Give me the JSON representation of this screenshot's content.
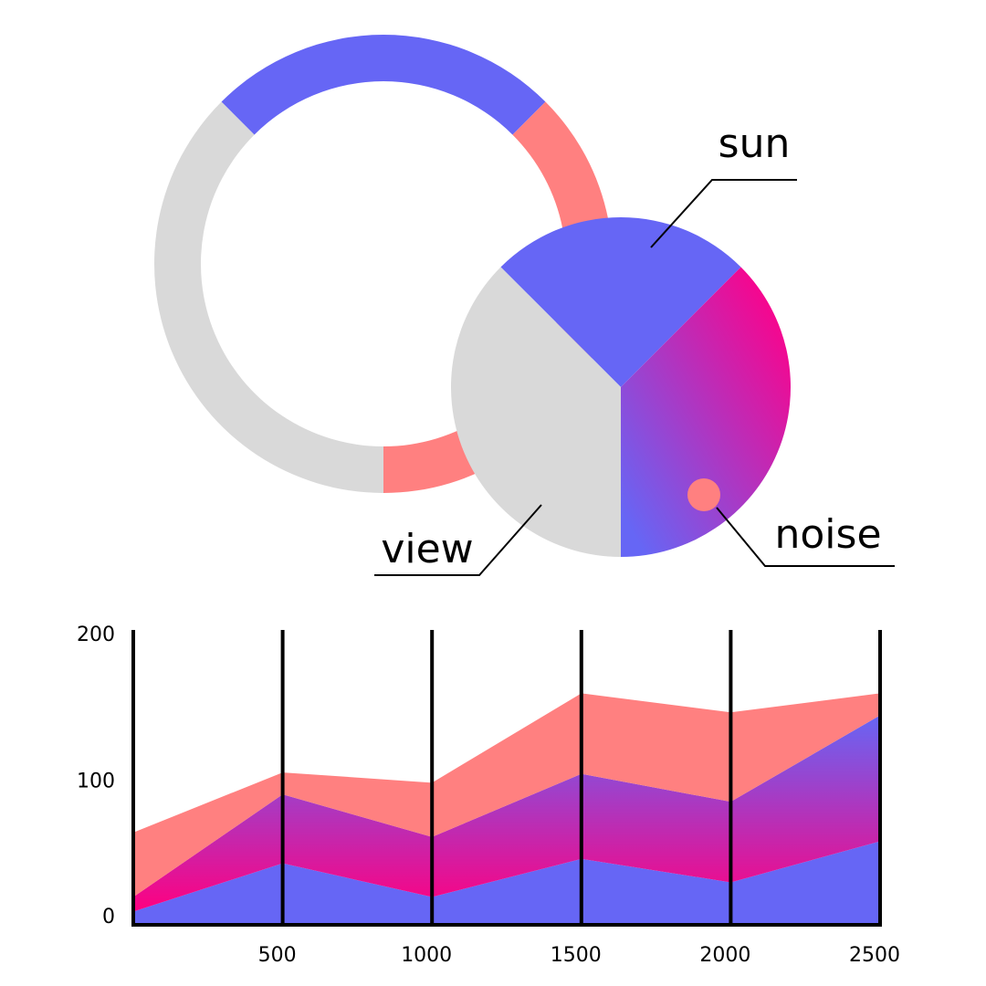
{
  "chart_data": [
    {
      "type": "donut",
      "values": [
        25,
        37.5,
        37.5
      ],
      "colors": [
        "#6666f5",
        "#ff8080",
        "#d9d9d9"
      ]
    },
    {
      "type": "pie",
      "categories": [
        "sun",
        "noise",
        "view"
      ],
      "values": [
        25,
        37.5,
        37.5
      ],
      "colors": [
        "#6666f5",
        [
          "#ff0088",
          "#6666f5"
        ],
        "#d9d9d9"
      ]
    },
    {
      "type": "area",
      "stacked": true,
      "x": [
        0,
        500,
        1000,
        1500,
        2000,
        2500
      ],
      "series": [
        {
          "color": "#6666f5",
          "values": [
            9,
            42,
            19,
            45,
            29,
            57
          ]
        },
        {
          "color": [
            "#6666f5",
            "#ff0080"
          ],
          "values": [
            10,
            47,
            41,
            58,
            55,
            86
          ]
        },
        {
          "color": "#ff8080",
          "values": [
            44,
            15,
            37,
            55,
            61,
            15
          ]
        }
      ],
      "xlim": [
        0,
        2500
      ],
      "xticks": [
        500,
        1000,
        1500,
        2000,
        2500
      ],
      "ylim": [
        0,
        200
      ],
      "yticks": [
        0,
        100,
        200
      ],
      "grid": true
    }
  ]
}
